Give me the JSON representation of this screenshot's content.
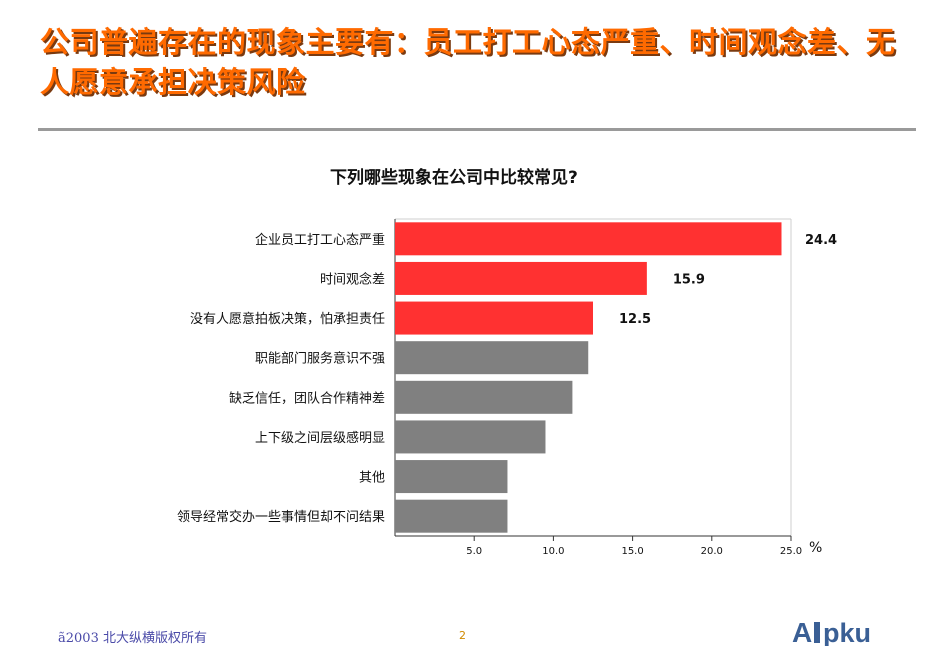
{
  "slide": {
    "title": "公司普遍存在的现象主要有：员工打工心态严重、时间观念差、无人愿意承担决策风险",
    "footer": "ã2003   北大纵横版权所有",
    "page_number": "2",
    "logo_text": "Alpku",
    "colors": {
      "title": "#ff6a00",
      "highlight_bar": "#ff3131",
      "normal_bar": "#808080"
    }
  },
  "chart_data": {
    "type": "bar",
    "orientation": "horizontal",
    "title": "下列哪些现象在公司中比较常见?",
    "unit": "%",
    "categories": [
      "企业员工打工心态严重",
      "时间观念差",
      "没有人愿意拍板决策，怕承担责任",
      "职能部门服务意识不强",
      "缺乏信任，团队合作精神差",
      "上下级之间层级感明显",
      "其他",
      "领导经常交办一些事情但却不问结果"
    ],
    "values": [
      24.4,
      15.9,
      12.5,
      12.2,
      11.2,
      9.5,
      7.1,
      7.1
    ],
    "data_labels": [
      "24.4",
      "15.9",
      "12.5",
      null,
      null,
      null,
      null,
      null
    ],
    "highlighted": [
      true,
      true,
      true,
      false,
      false,
      false,
      false,
      false
    ],
    "xlim": [
      0,
      25
    ],
    "x_ticks": [
      "5.0",
      "10.0",
      "15.0",
      "20.0",
      "25.0"
    ],
    "grid": false
  }
}
